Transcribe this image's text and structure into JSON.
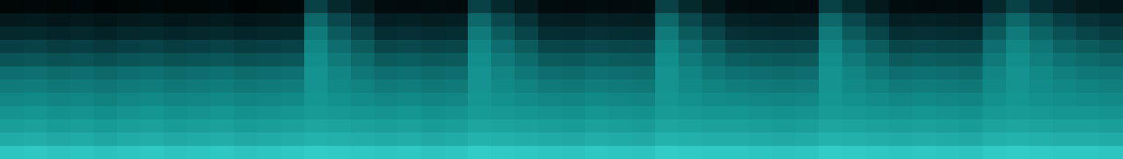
{
  "chart_data": {
    "type": "heatmap",
    "tick_labels": false,
    "cells": [
      [
        0.03,
        0.04,
        0.03,
        0.04,
        0.02,
        0.03,
        0.04,
        0.03,
        0.03,
        0.04,
        0.02,
        0.03,
        0.04,
        0.3,
        0.2,
        0.12,
        0.06,
        0.05,
        0.06,
        0.05,
        0.3,
        0.2,
        0.12,
        0.06,
        0.05,
        0.06,
        0.05,
        0.06,
        0.3,
        0.2,
        0.12,
        0.06,
        0.05,
        0.06,
        0.05,
        0.3,
        0.2,
        0.12,
        0.06,
        0.05,
        0.06,
        0.05,
        0.2,
        0.3,
        0.22,
        0.16,
        0.12,
        0.1
      ],
      [
        0.12,
        0.13,
        0.11,
        0.12,
        0.1,
        0.12,
        0.13,
        0.11,
        0.12,
        0.13,
        0.11,
        0.12,
        0.13,
        0.45,
        0.33,
        0.24,
        0.15,
        0.16,
        0.14,
        0.15,
        0.45,
        0.33,
        0.24,
        0.15,
        0.14,
        0.16,
        0.15,
        0.14,
        0.45,
        0.33,
        0.24,
        0.16,
        0.15,
        0.14,
        0.15,
        0.45,
        0.33,
        0.24,
        0.15,
        0.16,
        0.15,
        0.14,
        0.33,
        0.45,
        0.36,
        0.29,
        0.24,
        0.21
      ],
      [
        0.19,
        0.2,
        0.18,
        0.19,
        0.17,
        0.19,
        0.2,
        0.18,
        0.19,
        0.2,
        0.18,
        0.19,
        0.2,
        0.52,
        0.4,
        0.31,
        0.22,
        0.23,
        0.21,
        0.22,
        0.52,
        0.4,
        0.31,
        0.22,
        0.21,
        0.23,
        0.22,
        0.21,
        0.52,
        0.4,
        0.31,
        0.23,
        0.22,
        0.21,
        0.22,
        0.52,
        0.4,
        0.31,
        0.22,
        0.23,
        0.22,
        0.21,
        0.4,
        0.52,
        0.43,
        0.36,
        0.31,
        0.28
      ],
      [
        0.29,
        0.3,
        0.28,
        0.29,
        0.27,
        0.29,
        0.3,
        0.28,
        0.29,
        0.3,
        0.28,
        0.29,
        0.3,
        0.57,
        0.47,
        0.4,
        0.32,
        0.33,
        0.31,
        0.32,
        0.57,
        0.47,
        0.4,
        0.32,
        0.31,
        0.33,
        0.32,
        0.31,
        0.57,
        0.47,
        0.4,
        0.33,
        0.32,
        0.31,
        0.32,
        0.57,
        0.47,
        0.4,
        0.32,
        0.33,
        0.32,
        0.31,
        0.47,
        0.57,
        0.5,
        0.43,
        0.4,
        0.37
      ],
      [
        0.37,
        0.38,
        0.36,
        0.37,
        0.35,
        0.37,
        0.38,
        0.36,
        0.37,
        0.38,
        0.36,
        0.37,
        0.38,
        0.6,
        0.52,
        0.46,
        0.4,
        0.41,
        0.39,
        0.4,
        0.6,
        0.52,
        0.46,
        0.4,
        0.39,
        0.41,
        0.4,
        0.39,
        0.6,
        0.52,
        0.46,
        0.41,
        0.4,
        0.39,
        0.4,
        0.6,
        0.52,
        0.46,
        0.4,
        0.41,
        0.4,
        0.39,
        0.52,
        0.6,
        0.54,
        0.49,
        0.46,
        0.44
      ],
      [
        0.47,
        0.48,
        0.46,
        0.47,
        0.45,
        0.47,
        0.48,
        0.46,
        0.47,
        0.48,
        0.46,
        0.47,
        0.48,
        0.62,
        0.56,
        0.51,
        0.47,
        0.48,
        0.46,
        0.47,
        0.62,
        0.56,
        0.51,
        0.47,
        0.46,
        0.48,
        0.47,
        0.46,
        0.62,
        0.56,
        0.51,
        0.48,
        0.47,
        0.46,
        0.47,
        0.62,
        0.56,
        0.51,
        0.47,
        0.48,
        0.47,
        0.46,
        0.56,
        0.62,
        0.58,
        0.54,
        0.51,
        0.5
      ],
      [
        0.52,
        0.53,
        0.51,
        0.52,
        0.5,
        0.52,
        0.53,
        0.51,
        0.52,
        0.53,
        0.51,
        0.52,
        0.53,
        0.62,
        0.58,
        0.55,
        0.52,
        0.53,
        0.51,
        0.52,
        0.62,
        0.58,
        0.55,
        0.52,
        0.51,
        0.53,
        0.52,
        0.51,
        0.62,
        0.58,
        0.55,
        0.53,
        0.52,
        0.51,
        0.52,
        0.62,
        0.58,
        0.55,
        0.52,
        0.53,
        0.52,
        0.51,
        0.58,
        0.62,
        0.59,
        0.57,
        0.55,
        0.54
      ],
      [
        0.57,
        0.58,
        0.56,
        0.57,
        0.55,
        0.57,
        0.58,
        0.56,
        0.57,
        0.58,
        0.56,
        0.57,
        0.58,
        0.63,
        0.61,
        0.59,
        0.57,
        0.58,
        0.56,
        0.57,
        0.63,
        0.61,
        0.59,
        0.57,
        0.56,
        0.58,
        0.57,
        0.56,
        0.63,
        0.61,
        0.59,
        0.58,
        0.57,
        0.56,
        0.57,
        0.63,
        0.61,
        0.59,
        0.57,
        0.58,
        0.57,
        0.56,
        0.61,
        0.63,
        0.61,
        0.6,
        0.59,
        0.58
      ],
      [
        0.62,
        0.63,
        0.61,
        0.62,
        0.6,
        0.62,
        0.63,
        0.61,
        0.62,
        0.63,
        0.61,
        0.62,
        0.63,
        0.65,
        0.64,
        0.63,
        0.62,
        0.63,
        0.61,
        0.62,
        0.65,
        0.64,
        0.63,
        0.62,
        0.61,
        0.63,
        0.62,
        0.61,
        0.65,
        0.64,
        0.63,
        0.63,
        0.62,
        0.61,
        0.62,
        0.65,
        0.64,
        0.63,
        0.62,
        0.63,
        0.62,
        0.61,
        0.64,
        0.65,
        0.64,
        0.63,
        0.63,
        0.62
      ],
      [
        0.67,
        0.68,
        0.66,
        0.67,
        0.65,
        0.67,
        0.68,
        0.66,
        0.67,
        0.68,
        0.66,
        0.67,
        0.68,
        0.7,
        0.69,
        0.68,
        0.67,
        0.68,
        0.66,
        0.67,
        0.7,
        0.69,
        0.68,
        0.67,
        0.66,
        0.68,
        0.67,
        0.66,
        0.7,
        0.69,
        0.68,
        0.68,
        0.67,
        0.66,
        0.67,
        0.7,
        0.69,
        0.68,
        0.67,
        0.68,
        0.67,
        0.66,
        0.69,
        0.7,
        0.69,
        0.68,
        0.68,
        0.67
      ],
      [
        0.73,
        0.74,
        0.72,
        0.73,
        0.71,
        0.73,
        0.74,
        0.72,
        0.73,
        0.74,
        0.72,
        0.73,
        0.74,
        0.76,
        0.75,
        0.74,
        0.73,
        0.74,
        0.72,
        0.73,
        0.76,
        0.75,
        0.74,
        0.73,
        0.72,
        0.74,
        0.73,
        0.72,
        0.76,
        0.75,
        0.74,
        0.74,
        0.73,
        0.72,
        0.73,
        0.76,
        0.75,
        0.74,
        0.73,
        0.74,
        0.73,
        0.72,
        0.75,
        0.76,
        0.75,
        0.74,
        0.74,
        0.73
      ],
      [
        0.85,
        0.86,
        0.84,
        0.85,
        0.83,
        0.85,
        0.86,
        0.84,
        0.85,
        0.86,
        0.84,
        0.85,
        0.86,
        0.88,
        0.87,
        0.86,
        0.85,
        0.86,
        0.84,
        0.85,
        0.88,
        0.87,
        0.86,
        0.85,
        0.84,
        0.86,
        0.85,
        0.84,
        0.88,
        0.87,
        0.86,
        0.86,
        0.85,
        0.84,
        0.85,
        0.88,
        0.87,
        0.86,
        0.85,
        0.86,
        0.85,
        0.84,
        0.87,
        0.88,
        0.87,
        0.86,
        0.86,
        0.85
      ]
    ]
  }
}
